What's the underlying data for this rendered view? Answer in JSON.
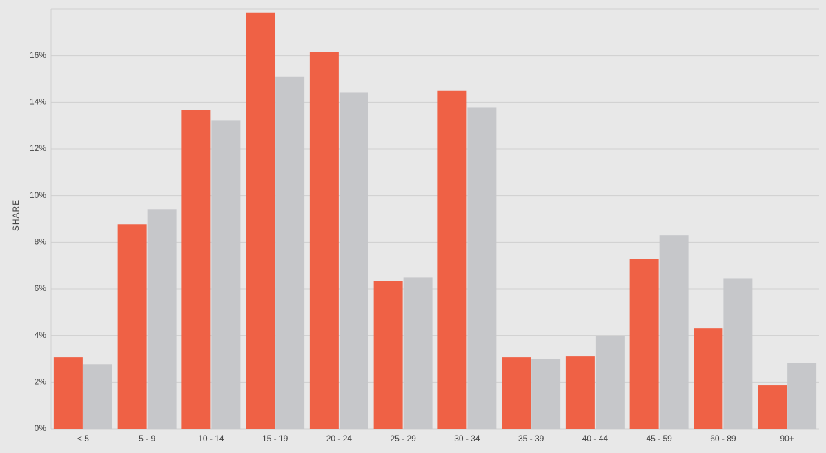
{
  "chart_data": {
    "type": "bar",
    "ylabel": "SHARE",
    "categories": [
      "< 5",
      "5 - 9",
      "10 - 14",
      "15 - 19",
      "20 - 24",
      "25 - 29",
      "30 - 34",
      "35 - 39",
      "40 - 44",
      "45 - 59",
      "60 - 89",
      "90+"
    ],
    "series": [
      {
        "color": "#ef6145",
        "values": [
          3.07,
          8.77,
          13.67,
          17.83,
          16.15,
          6.35,
          14.49,
          3.07,
          3.1,
          7.29,
          4.31,
          1.86
        ]
      },
      {
        "color": "#c6c7ca",
        "values": [
          2.77,
          9.42,
          13.23,
          15.11,
          14.41,
          6.49,
          13.79,
          3.01,
          3.99,
          8.3,
          6.46,
          2.83
        ]
      }
    ],
    "ylim": [
      0,
      18
    ],
    "yticks": [
      {
        "value": 0,
        "label": "0%"
      },
      {
        "value": 2,
        "label": "2%"
      },
      {
        "value": 4,
        "label": "4%"
      },
      {
        "value": 6,
        "label": "6%"
      },
      {
        "value": 8,
        "label": "8%"
      },
      {
        "value": 10,
        "label": "10%"
      },
      {
        "value": 12,
        "label": "12%"
      },
      {
        "value": 14,
        "label": "14%"
      },
      {
        "value": 16,
        "label": "16%"
      }
    ],
    "grid": true
  }
}
